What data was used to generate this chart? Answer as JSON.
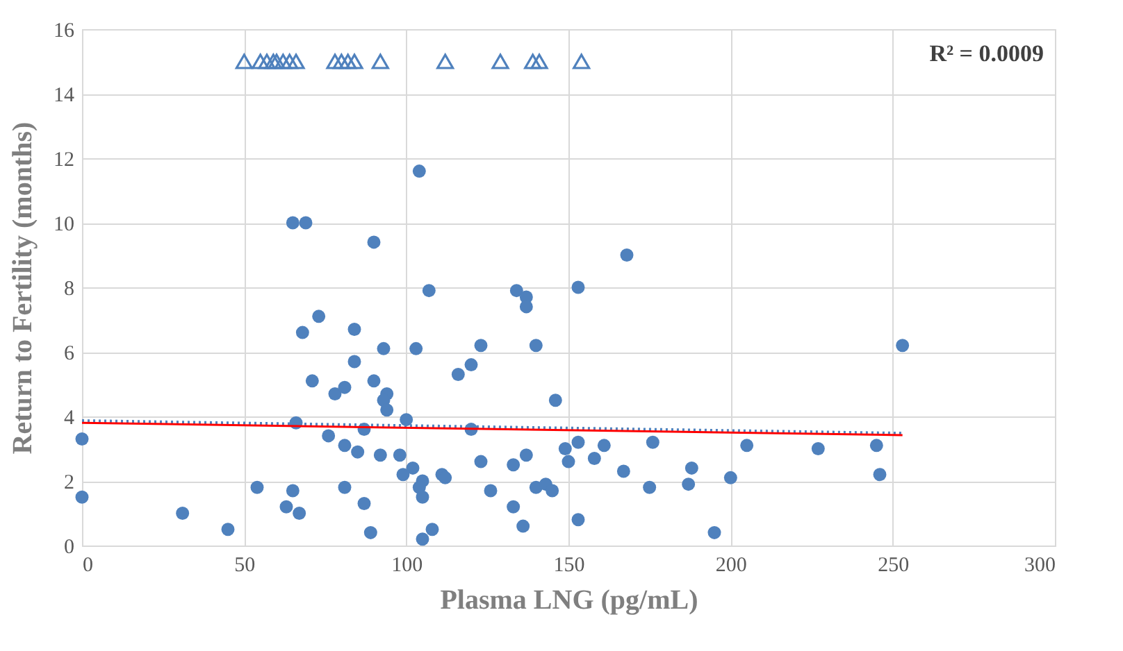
{
  "chart_data": {
    "type": "scatter",
    "xlabel": "Plasma LNG (pg/mL)",
    "ylabel": "Return to Fertility (months)",
    "xlim": [
      0,
      300
    ],
    "xticks": [
      0,
      50,
      100,
      150,
      200,
      250,
      300
    ],
    "ylim": [
      0,
      16
    ],
    "yticks": [
      0,
      2,
      4,
      6,
      8,
      10,
      12,
      14,
      16
    ],
    "grid": true,
    "annotations": [
      "R² = 0.0009"
    ],
    "series": [
      {
        "marker": "circle",
        "color": "#4f81bd",
        "x": [
          0,
          0,
          31,
          45,
          54,
          65,
          63,
          67,
          66,
          68,
          73,
          71,
          76,
          78,
          81,
          81,
          81,
          84,
          84,
          85,
          87,
          87,
          89,
          90,
          92,
          93,
          94,
          93,
          94,
          98,
          100,
          99,
          102,
          103,
          105,
          104,
          105,
          107,
          108,
          105,
          111,
          112,
          116,
          120,
          120,
          123,
          123,
          126,
          133,
          133,
          137,
          136,
          140,
          140,
          143,
          145,
          146,
          149,
          150,
          153,
          153,
          153,
          134,
          137,
          137,
          168,
          65,
          69,
          90,
          104,
          253,
          161,
          158,
          167,
          176,
          175,
          188,
          187,
          195,
          200,
          205,
          227,
          245,
          246
        ],
        "values": [
          3.3,
          1.5,
          1.0,
          0.5,
          1.8,
          1.7,
          1.2,
          1.0,
          3.8,
          6.6,
          7.1,
          5.1,
          3.4,
          4.7,
          4.9,
          3.1,
          1.8,
          6.7,
          5.7,
          2.9,
          3.6,
          1.3,
          0.4,
          5.1,
          2.8,
          6.1,
          4.7,
          4.5,
          4.2,
          2.8,
          3.9,
          2.2,
          2.4,
          6.1,
          2.0,
          1.8,
          1.5,
          7.9,
          0.5,
          0.2,
          2.2,
          2.1,
          5.3,
          5.6,
          3.6,
          6.2,
          2.6,
          1.7,
          1.2,
          2.5,
          2.8,
          0.6,
          1.8,
          6.2,
          1.9,
          1.7,
          4.5,
          3.0,
          2.6,
          3.2,
          0.8,
          8.0,
          7.9,
          7.7,
          7.4,
          9.0,
          10.0,
          10.0,
          9.4,
          11.6,
          6.2,
          3.1,
          2.7,
          2.3,
          3.2,
          1.8,
          2.4,
          1.9,
          0.4,
          2.1,
          3.1,
          3.0,
          3.1,
          2.2
        ]
      },
      {
        "marker": "triangle",
        "color": "#4f81bd",
        "x": [
          50,
          55,
          57,
          59,
          60,
          62,
          64,
          66,
          78,
          80,
          82,
          84,
          92,
          112,
          129,
          139,
          141,
          154
        ],
        "values": [
          15,
          15,
          15,
          15,
          15,
          15,
          15,
          15,
          15,
          15,
          15,
          15,
          15,
          15,
          15,
          15,
          15,
          15
        ]
      },
      {
        "type": "line",
        "line_style": "dotted",
        "color": "#4f81bd",
        "x": [
          0,
          253
        ],
        "values": [
          3.86,
          3.47
        ]
      },
      {
        "type": "line",
        "line_style": "solid",
        "color": "#ff0000",
        "x": [
          0,
          253
        ],
        "values": [
          3.8,
          3.42
        ]
      }
    ]
  }
}
